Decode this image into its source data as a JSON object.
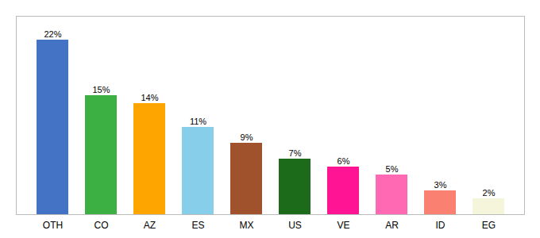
{
  "chart_data": {
    "type": "bar",
    "categories": [
      "OTH",
      "CO",
      "AZ",
      "ES",
      "MX",
      "US",
      "VE",
      "AR",
      "ID",
      "EG"
    ],
    "values": [
      22,
      15,
      14,
      11,
      9,
      7,
      6,
      5,
      3,
      2
    ],
    "value_labels": [
      "22%",
      "15%",
      "14%",
      "11%",
      "9%",
      "7%",
      "6%",
      "5%",
      "3%",
      "2%"
    ],
    "colors": [
      "#4472C4",
      "#3CB043",
      "#FFA500",
      "#87CEEB",
      "#A0522D",
      "#1B6B1B",
      "#FF1493",
      "#FF69B4",
      "#FA8072",
      "#F5F5DC"
    ],
    "ylim": [
      0,
      25
    ],
    "data_labels": true,
    "tick_labels": "x",
    "grid": false
  }
}
